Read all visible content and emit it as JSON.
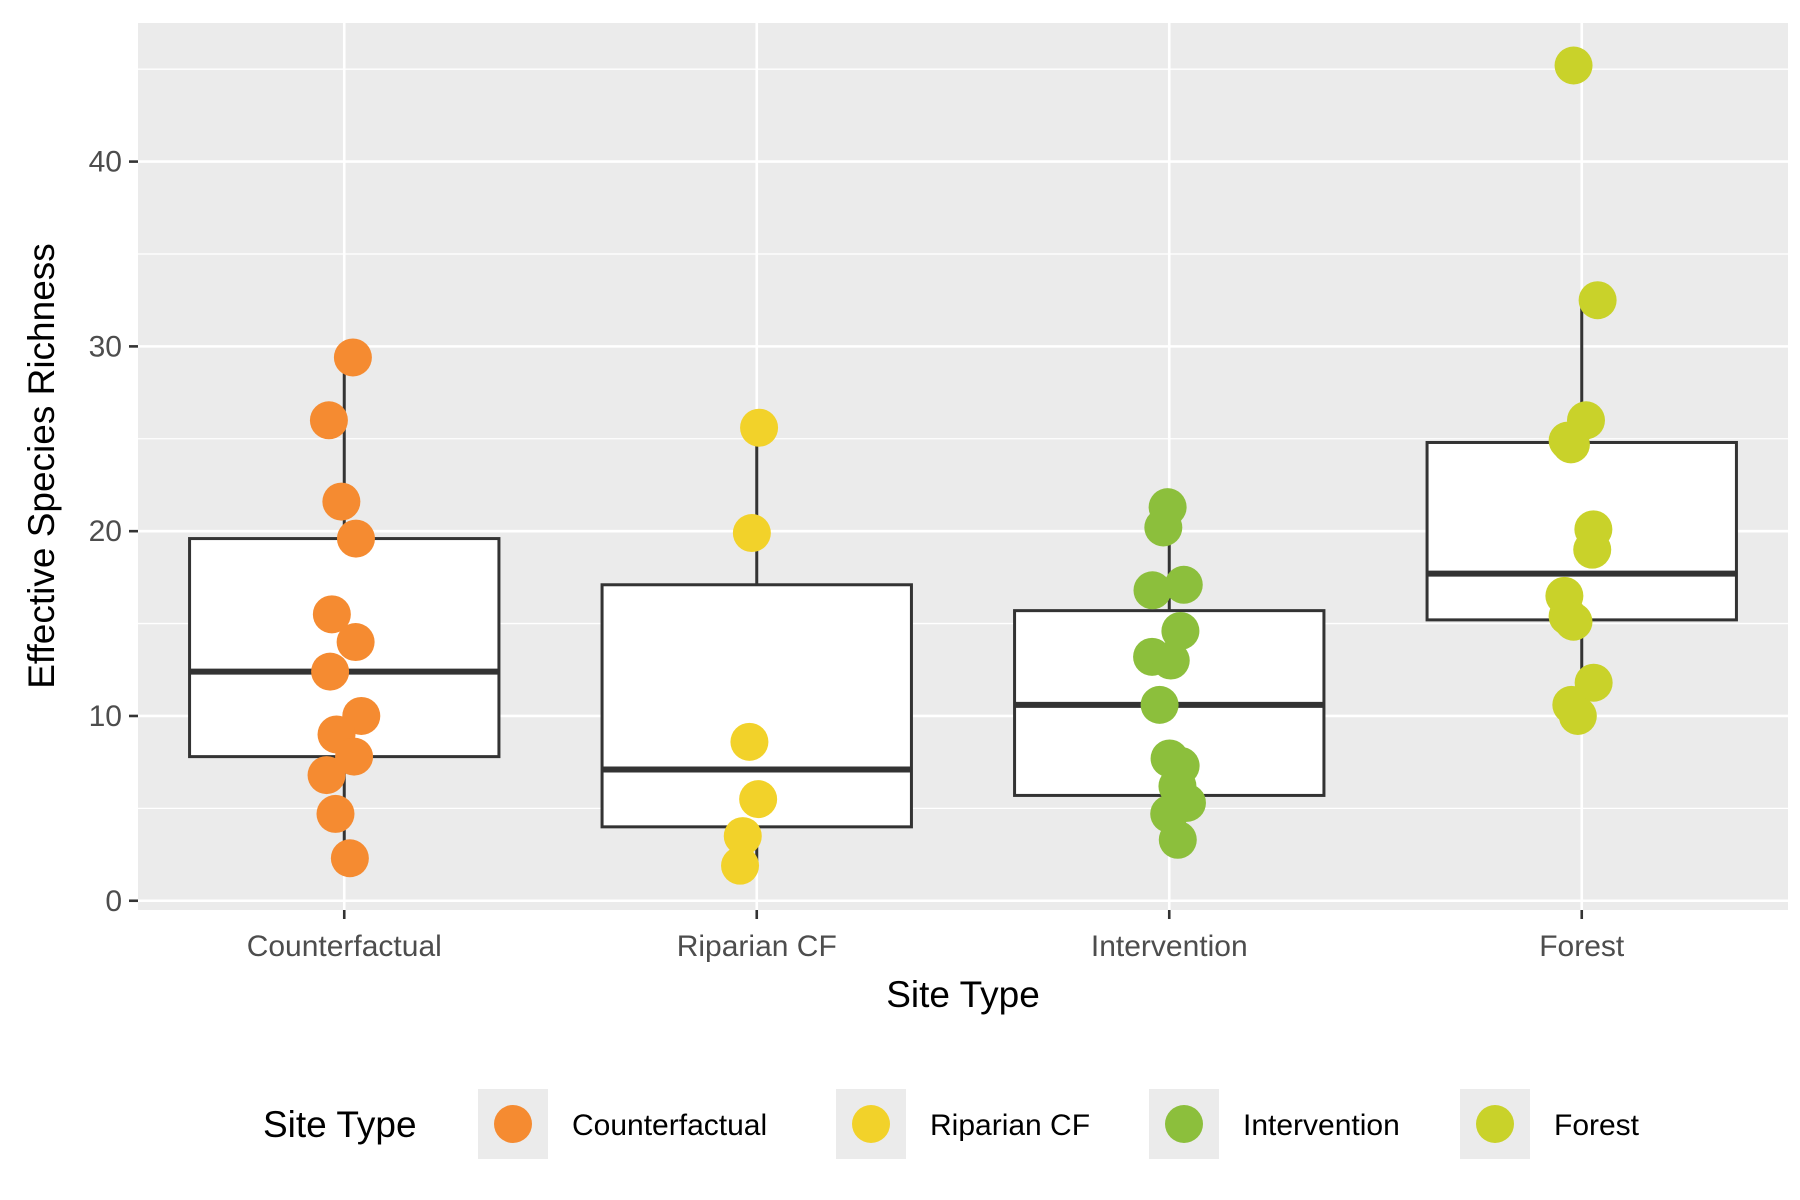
{
  "chart_data": {
    "type": "boxplot",
    "xlabel": "Site Type",
    "ylabel": "Effective Species Richness",
    "ylim": [
      -0.5,
      47.5
    ],
    "yticks": [
      0,
      10,
      20,
      30,
      40
    ],
    "grid": true,
    "legend": {
      "title": "Site Type",
      "position": "bottom"
    },
    "categories": [
      "Counterfactual",
      "Riparian CF",
      "Intervention",
      "Forest"
    ],
    "series": [
      {
        "name": "Counterfactual",
        "color": "#f58b31",
        "box": {
          "lower_whisker": 2.3,
          "q1": 7.8,
          "median": 12.4,
          "q3": 19.6,
          "upper_whisker": 29.4
        },
        "points": [
          29.4,
          26.0,
          21.6,
          19.6,
          15.5,
          14.0,
          12.4,
          10.0,
          9.0,
          7.8,
          6.8,
          4.7,
          2.3
        ]
      },
      {
        "name": "Riparian CF",
        "color": "#f2d22a",
        "box": {
          "lower_whisker": 1.9,
          "q1": 4.0,
          "median": 7.1,
          "q3": 17.1,
          "upper_whisker": 25.6
        },
        "points": [
          25.6,
          19.9,
          8.6,
          5.5,
          3.5,
          1.9
        ]
      },
      {
        "name": "Intervention",
        "color": "#8cbf3c",
        "box": {
          "lower_whisker": 3.3,
          "q1": 5.7,
          "median": 10.6,
          "q3": 15.7,
          "upper_whisker": 21.3
        },
        "points": [
          21.3,
          20.2,
          17.1,
          16.8,
          14.6,
          13.2,
          13.0,
          10.6,
          7.7,
          7.3,
          6.2,
          5.3,
          4.7,
          3.3
        ]
      },
      {
        "name": "Forest",
        "color": "#c9d22a",
        "box": {
          "lower_whisker": 10.0,
          "q1": 15.2,
          "median": 17.7,
          "q3": 24.8,
          "upper_whisker": 32.5
        },
        "points": [
          45.2,
          32.5,
          26.0,
          24.9,
          24.7,
          20.1,
          19.0,
          16.5,
          15.4,
          15.1,
          11.8,
          10.6,
          10.0
        ]
      }
    ]
  }
}
